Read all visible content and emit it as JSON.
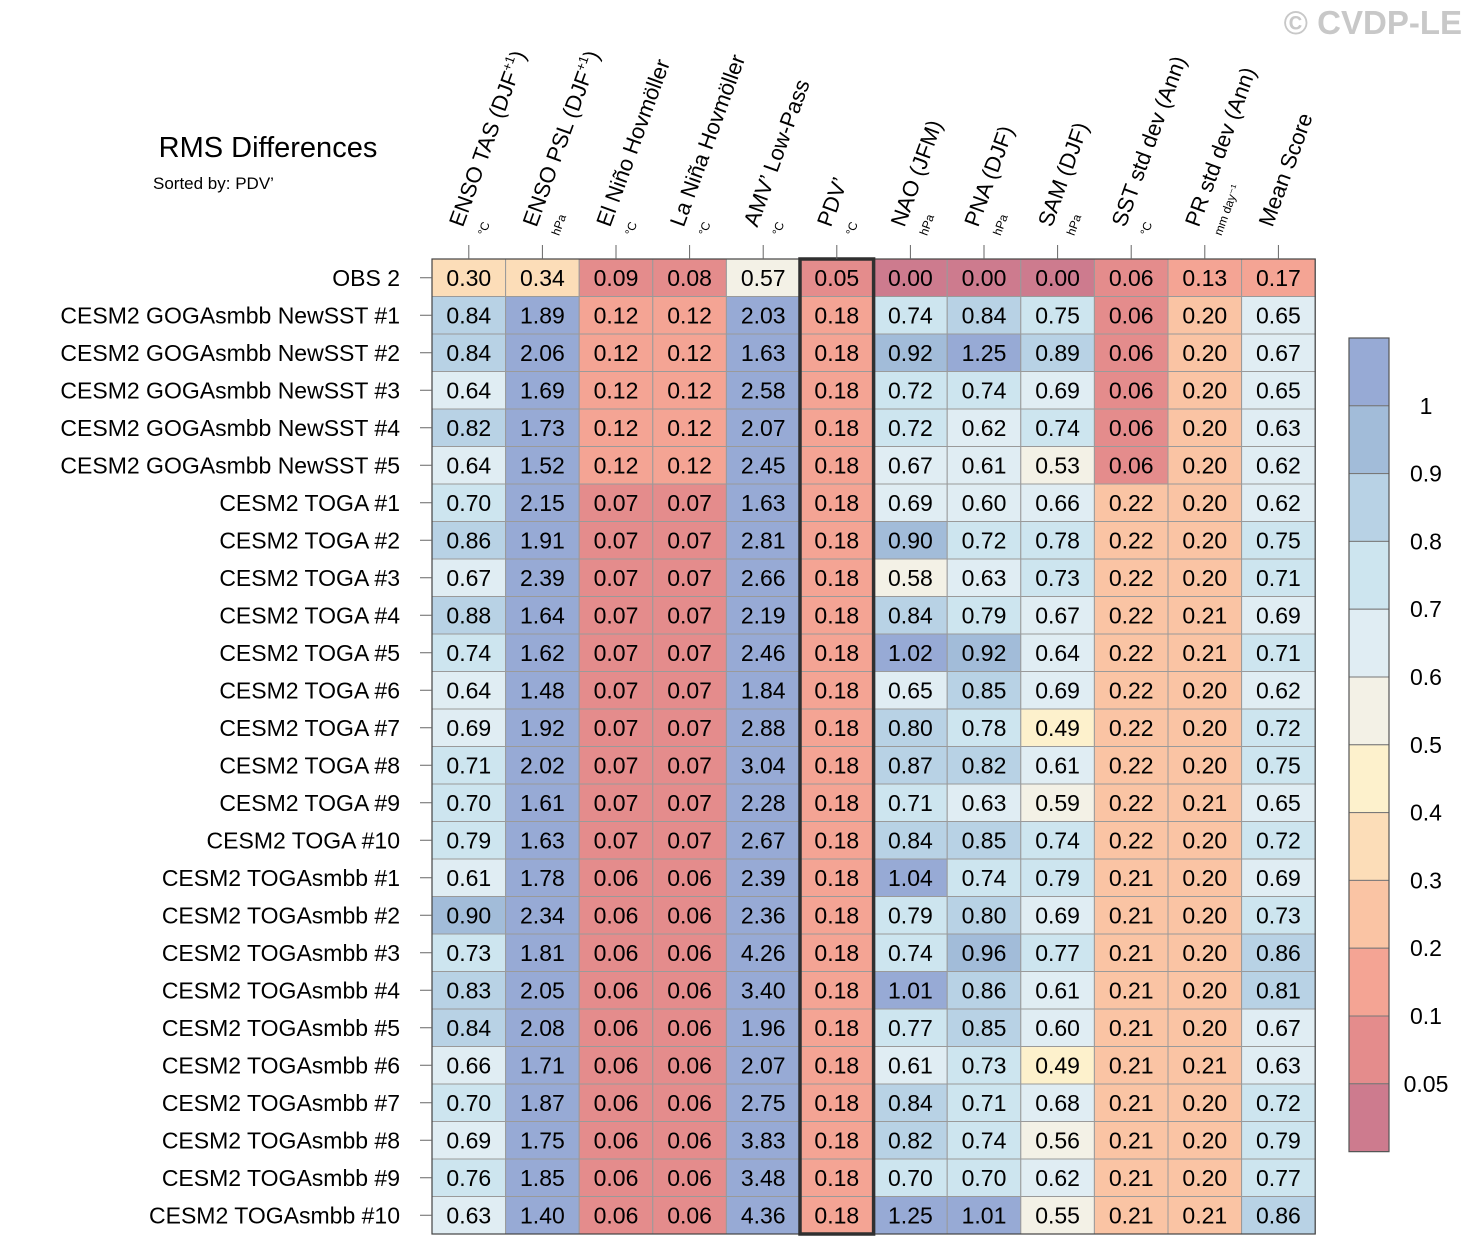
{
  "watermark": "© CVDP-LE",
  "colors": {
    "scale": [
      "#cd7b8e",
      "#e48c8c",
      "#f4a494",
      "#fac4a4",
      "#fcddb8",
      "#fdf1cc",
      "#f3f1e6",
      "#e0edf3",
      "#cde5ef",
      "#b8d2e5",
      "#a2bcd9",
      "#97aad5"
    ],
    "grid": "#9a9a9a",
    "highlight": "#303030"
  },
  "chart_data": {
    "type": "heatmap",
    "title": "RMS Differences",
    "subtitle": "Sorted by: PDV’",
    "highlight_column": 5,
    "columns": [
      {
        "label": "ENSO TAS (DJF",
        "sup": "+1",
        "close": ")",
        "unit": "°C"
      },
      {
        "label": "ENSO PSL (DJF",
        "sup": "+1",
        "close": ")",
        "unit": "hPa"
      },
      {
        "label": "El Niño Hovmöller",
        "sup": "",
        "close": "",
        "unit": "°C"
      },
      {
        "label": "La Niña Hovmöller",
        "sup": "",
        "close": "",
        "unit": "°C"
      },
      {
        "label": "AMV’ Low-Pass",
        "sup": "",
        "close": "",
        "unit": "°C"
      },
      {
        "label": "PDV’",
        "sup": "",
        "close": "",
        "unit": "°C"
      },
      {
        "label": "NAO (JFM)",
        "sup": "",
        "close": "",
        "unit": "hPa"
      },
      {
        "label": "PNA (DJF)",
        "sup": "",
        "close": "",
        "unit": "hPa"
      },
      {
        "label": "SAM (DJF)",
        "sup": "",
        "close": "",
        "unit": "hPa"
      },
      {
        "label": "SST std dev (Ann)",
        "sup": "",
        "close": "",
        "unit": "°C"
      },
      {
        "label": "PR std dev (Ann)",
        "sup": "",
        "close": "",
        "unit": "mm day⁻¹"
      },
      {
        "label": "Mean Score",
        "sup": "",
        "close": "",
        "unit": ""
      }
    ],
    "rows": [
      {
        "name": "OBS 2",
        "values": [
          0.3,
          0.34,
          0.09,
          0.08,
          0.57,
          0.05,
          0.0,
          0.0,
          0.0,
          0.06,
          0.13,
          0.17
        ]
      },
      {
        "name": "CESM2 GOGAsmbb NewSST #1",
        "values": [
          0.84,
          1.89,
          0.12,
          0.12,
          2.03,
          0.18,
          0.74,
          0.84,
          0.75,
          0.06,
          0.2,
          0.65
        ]
      },
      {
        "name": "CESM2 GOGAsmbb NewSST #2",
        "values": [
          0.84,
          2.06,
          0.12,
          0.12,
          1.63,
          0.18,
          0.92,
          1.25,
          0.89,
          0.06,
          0.2,
          0.67
        ]
      },
      {
        "name": "CESM2 GOGAsmbb NewSST #3",
        "values": [
          0.64,
          1.69,
          0.12,
          0.12,
          2.58,
          0.18,
          0.72,
          0.74,
          0.69,
          0.06,
          0.2,
          0.65
        ]
      },
      {
        "name": "CESM2 GOGAsmbb NewSST #4",
        "values": [
          0.82,
          1.73,
          0.12,
          0.12,
          2.07,
          0.18,
          0.72,
          0.62,
          0.74,
          0.06,
          0.2,
          0.63
        ]
      },
      {
        "name": "CESM2 GOGAsmbb NewSST #5",
        "values": [
          0.64,
          1.52,
          0.12,
          0.12,
          2.45,
          0.18,
          0.67,
          0.61,
          0.53,
          0.06,
          0.2,
          0.62
        ]
      },
      {
        "name": "CESM2 TOGA #1",
        "values": [
          0.7,
          2.15,
          0.07,
          0.07,
          1.63,
          0.18,
          0.69,
          0.6,
          0.66,
          0.22,
          0.2,
          0.62
        ]
      },
      {
        "name": "CESM2 TOGA #2",
        "values": [
          0.86,
          1.91,
          0.07,
          0.07,
          2.81,
          0.18,
          0.9,
          0.72,
          0.78,
          0.22,
          0.2,
          0.75
        ]
      },
      {
        "name": "CESM2 TOGA #3",
        "values": [
          0.67,
          2.39,
          0.07,
          0.07,
          2.66,
          0.18,
          0.58,
          0.63,
          0.73,
          0.22,
          0.2,
          0.71
        ]
      },
      {
        "name": "CESM2 TOGA #4",
        "values": [
          0.88,
          1.64,
          0.07,
          0.07,
          2.19,
          0.18,
          0.84,
          0.79,
          0.67,
          0.22,
          0.21,
          0.69
        ]
      },
      {
        "name": "CESM2 TOGA #5",
        "values": [
          0.74,
          1.62,
          0.07,
          0.07,
          2.46,
          0.18,
          1.02,
          0.92,
          0.64,
          0.22,
          0.21,
          0.71
        ]
      },
      {
        "name": "CESM2 TOGA #6",
        "values": [
          0.64,
          1.48,
          0.07,
          0.07,
          1.84,
          0.18,
          0.65,
          0.85,
          0.69,
          0.22,
          0.2,
          0.62
        ]
      },
      {
        "name": "CESM2 TOGA #7",
        "values": [
          0.69,
          1.92,
          0.07,
          0.07,
          2.88,
          0.18,
          0.8,
          0.78,
          0.49,
          0.22,
          0.2,
          0.72
        ]
      },
      {
        "name": "CESM2 TOGA #8",
        "values": [
          0.71,
          2.02,
          0.07,
          0.07,
          3.04,
          0.18,
          0.87,
          0.82,
          0.61,
          0.22,
          0.2,
          0.75
        ]
      },
      {
        "name": "CESM2 TOGA #9",
        "values": [
          0.7,
          1.61,
          0.07,
          0.07,
          2.28,
          0.18,
          0.71,
          0.63,
          0.59,
          0.22,
          0.21,
          0.65
        ]
      },
      {
        "name": "CESM2 TOGA #10",
        "values": [
          0.79,
          1.63,
          0.07,
          0.07,
          2.67,
          0.18,
          0.84,
          0.85,
          0.74,
          0.22,
          0.2,
          0.72
        ]
      },
      {
        "name": "CESM2 TOGAsmbb #1",
        "values": [
          0.61,
          1.78,
          0.06,
          0.06,
          2.39,
          0.18,
          1.04,
          0.74,
          0.79,
          0.21,
          0.2,
          0.69
        ]
      },
      {
        "name": "CESM2 TOGAsmbb #2",
        "values": [
          0.9,
          2.34,
          0.06,
          0.06,
          2.36,
          0.18,
          0.79,
          0.8,
          0.69,
          0.21,
          0.2,
          0.73
        ]
      },
      {
        "name": "CESM2 TOGAsmbb #3",
        "values": [
          0.73,
          1.81,
          0.06,
          0.06,
          4.26,
          0.18,
          0.74,
          0.96,
          0.77,
          0.21,
          0.2,
          0.86
        ]
      },
      {
        "name": "CESM2 TOGAsmbb #4",
        "values": [
          0.83,
          2.05,
          0.06,
          0.06,
          3.4,
          0.18,
          1.01,
          0.86,
          0.61,
          0.21,
          0.2,
          0.81
        ]
      },
      {
        "name": "CESM2 TOGAsmbb #5",
        "values": [
          0.84,
          2.08,
          0.06,
          0.06,
          1.96,
          0.18,
          0.77,
          0.85,
          0.6,
          0.21,
          0.2,
          0.67
        ]
      },
      {
        "name": "CESM2 TOGAsmbb #6",
        "values": [
          0.66,
          1.71,
          0.06,
          0.06,
          2.07,
          0.18,
          0.61,
          0.73,
          0.49,
          0.21,
          0.21,
          0.63
        ]
      },
      {
        "name": "CESM2 TOGAsmbb #7",
        "values": [
          0.7,
          1.87,
          0.06,
          0.06,
          2.75,
          0.18,
          0.84,
          0.71,
          0.68,
          0.21,
          0.2,
          0.72
        ]
      },
      {
        "name": "CESM2 TOGAsmbb #8",
        "values": [
          0.69,
          1.75,
          0.06,
          0.06,
          3.83,
          0.18,
          0.82,
          0.74,
          0.56,
          0.21,
          0.2,
          0.79
        ]
      },
      {
        "name": "CESM2 TOGAsmbb #9",
        "values": [
          0.76,
          1.85,
          0.06,
          0.06,
          3.48,
          0.18,
          0.7,
          0.7,
          0.62,
          0.21,
          0.2,
          0.77
        ]
      },
      {
        "name": "CESM2 TOGAsmbb #10",
        "values": [
          0.63,
          1.4,
          0.06,
          0.06,
          4.36,
          0.18,
          1.25,
          1.01,
          0.55,
          0.21,
          0.21,
          0.86
        ]
      }
    ],
    "colorbar": {
      "levels": [
        0.05,
        0.1,
        0.2,
        0.3,
        0.4,
        0.5,
        0.6,
        0.7,
        0.8,
        0.9,
        1
      ],
      "labels": [
        "0.05",
        "0.1",
        "0.2",
        "0.3",
        "0.4",
        "0.5",
        "0.6",
        "0.7",
        "0.8",
        "0.9",
        "1"
      ]
    }
  }
}
